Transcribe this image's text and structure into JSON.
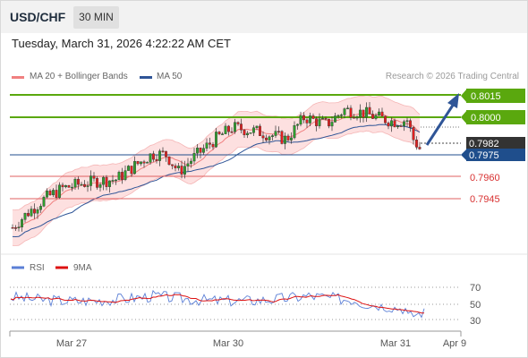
{
  "header": {
    "symbol": "USD/CHF",
    "timeframe": "30 MIN",
    "datetime": "Tuesday, March 31, 2026 4:22:22 AM CET"
  },
  "legend": {
    "ma20_label": "MA 20 + Bollinger Bands",
    "ma50_label": "MA 50",
    "copyright": "Research © 2026 Trading Central"
  },
  "levels": {
    "r2": "0.8015",
    "r1": "0.8000",
    "last": "0.7982",
    "pivot": "0.7975",
    "s1": "0.7960",
    "s2": "0.7945"
  },
  "rsi_legend": {
    "rsi_label": "RSI",
    "ma_label": "9MA"
  },
  "rsi_axis": [
    "70",
    "50",
    "30"
  ],
  "x_axis": [
    "Mar 27",
    "Mar 30",
    "Mar 31",
    "Apr 9"
  ],
  "colors": {
    "up": "#2e9e2e",
    "down": "#e02020",
    "resistance": "#5aa80e",
    "pivot": "#1f4e8c",
    "support": "#e06060",
    "last_bg": "#333333",
    "ma20": "#f08080",
    "ma50": "#2f5597",
    "rsi": "#5b7fd6",
    "rsi_ma": "#dd1111"
  },
  "chart_data": {
    "type": "candlestick",
    "price_levels": {
      "resistance_2": 0.8015,
      "resistance_1": 0.8,
      "last": 0.7982,
      "pivot": 0.7975,
      "support_1": 0.796,
      "support_2": 0.7945
    },
    "indicators": [
      "MA 20 + Bollinger Bands",
      "MA 50"
    ],
    "rsi_scale": [
      30,
      50,
      70
    ],
    "x_labels": [
      "Mar 27",
      "Mar 30",
      "Mar 31",
      "Apr 9"
    ],
    "forecast": "up toward 0.8015"
  }
}
